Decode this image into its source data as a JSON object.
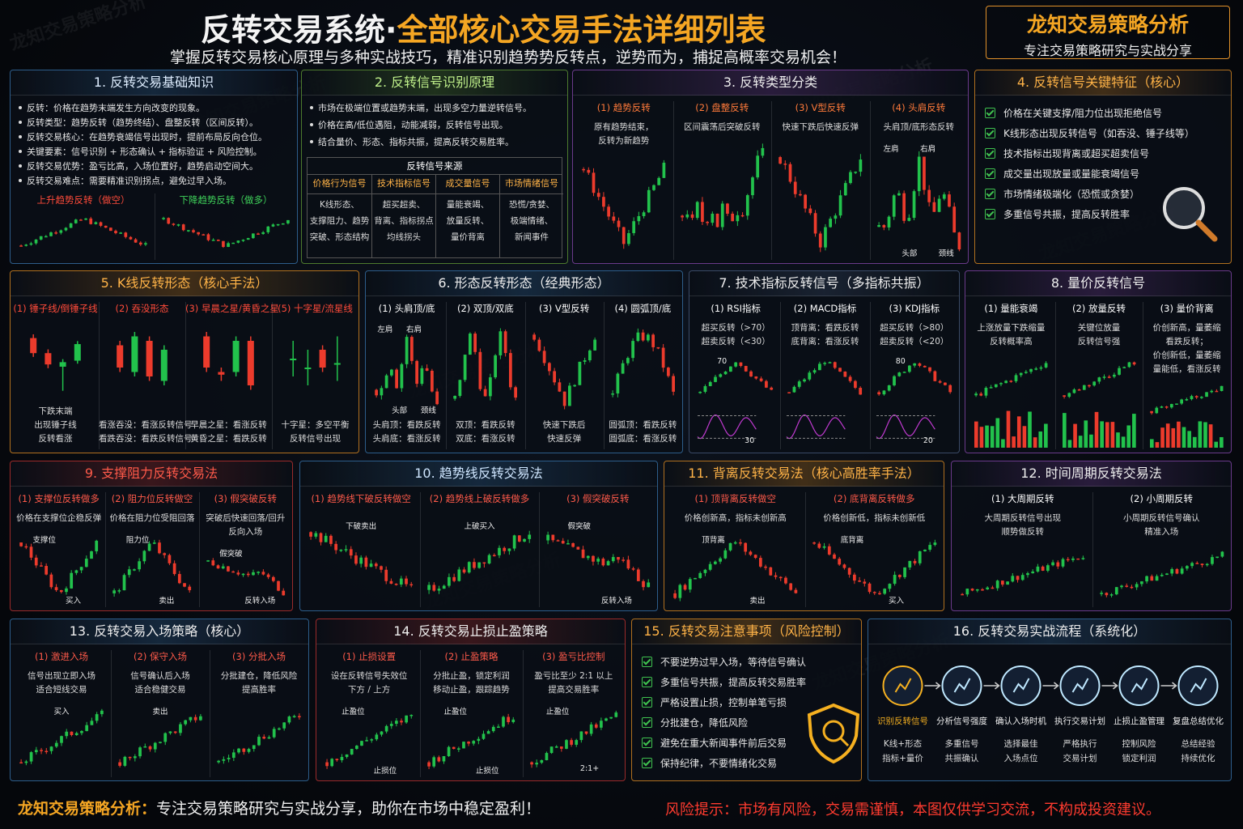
{
  "header": {
    "title_a": "反转交易系统·",
    "title_b": "全部核心交易手法详细列表",
    "subtitle": "掌握反转交易核心原理与多种实战技巧，精准识别趋势势反转点，逆势而为，捕捉高概率交易机会！",
    "brand": "龙知交易策略分析",
    "brand_sub": "专注交易策略研究与实战分享",
    "watermark": "龙知交易策略分析"
  },
  "panels": [
    {
      "title": "1. 反转交易基础知识",
      "bullets": [
        "反转：价格在趋势末端发生方向改变的现象。",
        "反转类型：趋势反转（趋势终结）、盘整反转（区间反转）。",
        "反转交易核心：在趋势衰竭信号出现时，提前布局反向仓位。",
        "关键要素：信号识别 + 形态确认 + 指标验证 + 风险控制。",
        "反转交易优势：盈亏比高，入场位置好，趋势启动空间大。",
        "反转交易难点：需要精准识别拐点，避免过早入场。"
      ],
      "columns": [
        {
          "heading": "上升趋势反转（做空）"
        },
        {
          "heading": "下降趋势反转（做多）"
        }
      ]
    },
    {
      "title": "2. 反转信号识别原理",
      "bullets": [
        "市场在极端位置或趋势末端，出现多空力量逆转信号。",
        "价格在高/低位遇阻，动能减弱，反转信号出现。",
        "结合量价、形态、指标共振，提高反转交易胜率。"
      ],
      "source_table": {
        "title": "反转信号来源",
        "columns": [
          {
            "heading": "价格行为信号",
            "lines": [
              "K线形态、",
              "支撑阻力、趋势",
              "突破、形态结构"
            ]
          },
          {
            "heading": "技术指标信号",
            "lines": [
              "超买超卖、",
              "背离、指标拐点",
              "均线拐头"
            ]
          },
          {
            "heading": "成交量信号",
            "lines": [
              "量能衰竭、",
              "放量反转、",
              "量价背离"
            ]
          },
          {
            "heading": "市场情绪信号",
            "lines": [
              "恐慌/贪婪、",
              "极端情绪、",
              "新闻事件"
            ]
          }
        ]
      }
    },
    {
      "title": "3. 反转类型分类",
      "columns": [
        {
          "heading": "(1) 趋势反转",
          "lines": [
            "原有趋势结束，",
            "反转为新趋势"
          ]
        },
        {
          "heading": "(2) 盘整反转",
          "lines": [
            "区间震荡后突破反转"
          ]
        },
        {
          "heading": "(3) V型反转",
          "lines": [
            "快速下跌后快速反弹"
          ]
        },
        {
          "heading": "(4) 头肩反转",
          "lines": [
            "头肩顶/底形态反转"
          ],
          "labels": [
            "左肩",
            "头部",
            "右肩",
            "颈线"
          ]
        }
      ]
    },
    {
      "title": "4. 反转信号关键特征（核心）",
      "checks": [
        "价格在关键支撑/阻力位出现拒绝信号",
        "K线形态出现反转信号（如吞没、锤子线等）",
        "技术指标出现背离或超买超卖信号",
        "成交量出现放量或量能衰竭信号",
        "市场情绪极端化（恐慌或贪婪）",
        "多重信号共振，提高反转胜率"
      ]
    },
    {
      "title": "5. K线反转形态（核心手法）",
      "columns": [
        {
          "heading": "(1) 锤子线/倒锤子线",
          "lines": [
            "下跌末端",
            "出现锤子线",
            "反转看涨"
          ]
        },
        {
          "heading": "(2) 吞没形态",
          "lines": [
            "看涨吞没：看涨反转信号",
            "看跌吞没：看跌反转信号"
          ]
        },
        {
          "heading": "(3) 早晨之星/黄昏之星",
          "lines": [
            "早晨之星：看涨反转",
            "黄昏之星：看跌反转"
          ]
        },
        {
          "heading": "(5) 十字星/流星线",
          "lines": [
            "十字星：多空平衡",
            "反转信号出现"
          ]
        }
      ]
    },
    {
      "title": "6. 形态反转形态（经典形态）",
      "columns": [
        {
          "heading": "(1) 头肩顶/底",
          "lines": [
            "头肩顶：看跌反转",
            "头肩底：看涨反转"
          ],
          "labels": [
            "左肩",
            "头部",
            "右肩",
            "颈线"
          ]
        },
        {
          "heading": "(2) 双顶/双底",
          "lines": [
            "双顶：看跌反转",
            "双底：看涨反转"
          ]
        },
        {
          "heading": "(3) V型反转",
          "lines": [
            "快速下跌后",
            "快速反弹"
          ]
        },
        {
          "heading": "(4) 圆弧顶/底",
          "lines": [
            "圆弧顶：看跌反转",
            "圆弧底：看涨反转"
          ]
        }
      ]
    },
    {
      "title": "7. 技术指标反转信号（多指标共振）",
      "columns": [
        {
          "heading": "(1) RSI指标",
          "lines": [
            "超买反转（>70）",
            "超卖反转（<30）"
          ],
          "labels": [
            "70",
            "30"
          ]
        },
        {
          "heading": "(2) MACD指标",
          "lines": [
            "顶背离：看跌反转",
            "底背离：看涨反转"
          ]
        },
        {
          "heading": "(3) KDJ指标",
          "lines": [
            "超买反转（>80）",
            "超卖反转（<20）"
          ],
          "labels": [
            "80",
            "20"
          ]
        }
      ]
    },
    {
      "title": "8. 量价反转信号",
      "columns": [
        {
          "heading": "(1) 量能衰竭",
          "lines": [
            "上涨放量下跌缩量",
            "反转概率高"
          ]
        },
        {
          "heading": "(2) 放量反转",
          "lines": [
            "关键位放量",
            "反转信号强"
          ]
        },
        {
          "heading": "(3) 量价背离",
          "lines": [
            "价创新高，量萎缩",
            "看跌反转；",
            "价创新低，量萎缩",
            "量能低，看涨反转"
          ]
        }
      ]
    },
    {
      "title": "9. 支撑阻力反转交易法",
      "columns": [
        {
          "heading": "(1) 支撑位反转做多",
          "lines": [
            "价格在支撑位企稳反弹"
          ],
          "labels": [
            "支撑位",
            "买入"
          ]
        },
        {
          "heading": "(2) 阻力位反转做空",
          "lines": [
            "价格在阻力位受阻回落"
          ],
          "labels": [
            "阻力位",
            "卖出"
          ]
        },
        {
          "heading": "(3) 假突破反转",
          "lines": [
            "突破后快速回落/回升",
            "反向入场"
          ],
          "labels": [
            "假突破",
            "反转入场"
          ]
        }
      ]
    },
    {
      "title": "10. 趋势线反转交易法",
      "columns": [
        {
          "heading": "(1) 趋势线下破反转做空",
          "labels": [
            "下破卖出"
          ]
        },
        {
          "heading": "(2) 趋势线上破反转做多",
          "labels": [
            "上破买入"
          ]
        },
        {
          "heading": "(3) 假突破反转",
          "labels": [
            "假突破",
            "反转入场"
          ]
        }
      ]
    },
    {
      "title": "11. 背离反转交易法（核心高胜率手法）",
      "columns": [
        {
          "heading": "(1) 顶背离反转做空",
          "lines": [
            "价格创新高，指标未创新高"
          ],
          "labels": [
            "顶背离",
            "卖出"
          ]
        },
        {
          "heading": "(2) 底背离反转做多",
          "lines": [
            "价格创新低，指标未创新低"
          ],
          "labels": [
            "底背离",
            "买入"
          ]
        }
      ]
    },
    {
      "title": "12. 时间周期反转交易法",
      "columns": [
        {
          "heading": "(1) 大周期反转",
          "lines": [
            "大周期反转信号出现",
            "顺势做反转"
          ]
        },
        {
          "heading": "(2) 小周期反转",
          "lines": [
            "小周期反转信号确认",
            "精准入场"
          ]
        }
      ]
    },
    {
      "title": "13. 反转交易入场策略（核心）",
      "columns": [
        {
          "heading": "(1) 激进入场",
          "lines": [
            "信号出现立即入场",
            "适合短线交易"
          ],
          "labels": [
            "买入"
          ]
        },
        {
          "heading": "(2) 保守入场",
          "lines": [
            "信号确认后入场",
            "适合稳健交易"
          ],
          "labels": [
            "卖出"
          ]
        },
        {
          "heading": "(3) 分批入场",
          "lines": [
            "分批建仓，降低风险",
            "提高胜率"
          ]
        }
      ]
    },
    {
      "title": "14. 反转交易止损止盈策略",
      "columns": [
        {
          "heading": "(1) 止损设置",
          "lines": [
            "设在反转信号失效位",
            "下方 / 上方"
          ],
          "labels": [
            "止盈位",
            "止损位"
          ]
        },
        {
          "heading": "(2) 止盈策略",
          "lines": [
            "分批止盈，锁定利润",
            "移动止盈，跟踪趋势"
          ],
          "labels": [
            "止盈位",
            "止损位"
          ]
        },
        {
          "heading": "(3) 盈亏比控制",
          "lines": [
            "盈亏比至少 2:1 以上",
            "提高交易胜率"
          ],
          "labels": [
            "止盈位",
            "2:1+"
          ]
        }
      ]
    },
    {
      "title": "15. 反转交易注意事项（风险控制）",
      "checks": [
        "不要逆势过早入场，等待信号确认",
        "多重信号共振，提高反转交易胜率",
        "严格设置止损，控制单笔亏损",
        "分批建仓，降低风险",
        "避免在重大新闻事件前后交易",
        "保持纪律，不要情绪化交易"
      ]
    },
    {
      "title": "16. 反转交易实战流程（系统化）",
      "steps": [
        {
          "name": "识别反转信号",
          "lines": [
            "K线+形态",
            "指标+量价"
          ]
        },
        {
          "name": "分析信号强度",
          "lines": [
            "多重信号",
            "共振确认"
          ]
        },
        {
          "name": "确认入场时机",
          "lines": [
            "选择最佳",
            "入场点位"
          ]
        },
        {
          "name": "执行交易计划",
          "lines": [
            "严格执行",
            "交易计划"
          ]
        },
        {
          "name": "止损止盈管理",
          "lines": [
            "控制风险",
            "锁定利润"
          ]
        },
        {
          "name": "复盘总结优化",
          "lines": [
            "总结经验",
            "持续优化"
          ]
        }
      ]
    }
  ],
  "footer": {
    "brand": "龙知交易策略分析：",
    "text": "专注交易策略研究与实战分享，助你在市场中稳定盈利！",
    "risk": "风险提示：市场有风险，交易需谨慎，本图仅供学习交流，不构成投资建议。"
  }
}
